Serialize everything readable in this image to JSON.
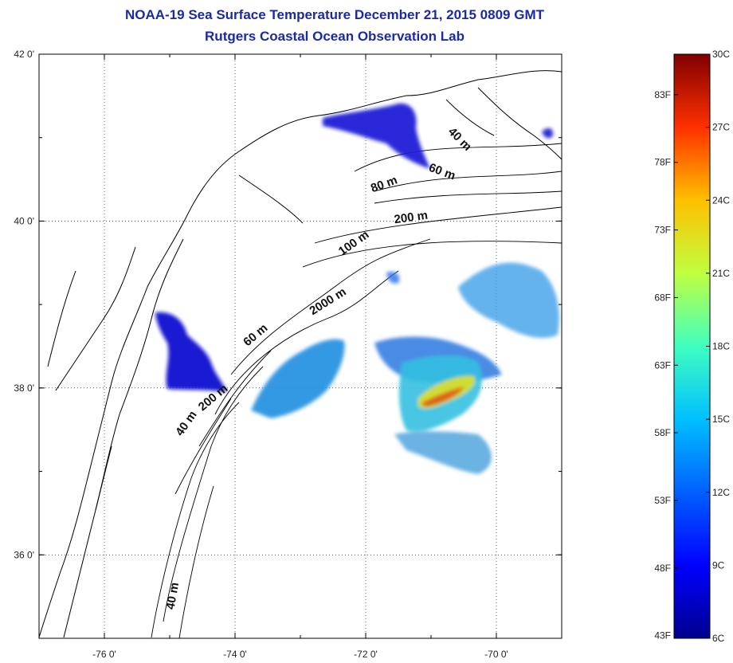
{
  "title": {
    "line1": "NOAA-19 Sea Surface Temperature December 21, 2015 0809 GMT",
    "line2": "Rutgers Coastal Ocean Observation Lab"
  },
  "map": {
    "lon_range": [
      -77.0,
      -69.0
    ],
    "lat_range": [
      35.0,
      42.0
    ],
    "lon_ticks": [
      {
        "value": -76,
        "label": "-76 0'"
      },
      {
        "value": -74,
        "label": "-74 0'"
      },
      {
        "value": -72,
        "label": "-72 0'"
      },
      {
        "value": -70,
        "label": "-70 0'"
      }
    ],
    "lat_ticks": [
      {
        "value": 42,
        "label": "42 0'"
      },
      {
        "value": 40,
        "label": "40 0'"
      },
      {
        "value": 38,
        "label": "38 0'"
      },
      {
        "value": 36,
        "label": "36 0'"
      }
    ],
    "grid": "dotted",
    "isobath_labels": [
      {
        "text": "40 m",
        "lon": -70.6,
        "lat": 40.95,
        "angle": 45
      },
      {
        "text": "60 m",
        "lon": -70.85,
        "lat": 40.55,
        "angle": 20
      },
      {
        "text": "80 m",
        "lon": -71.7,
        "lat": 40.4,
        "angle": -20
      },
      {
        "text": "200 m",
        "lon": -71.3,
        "lat": 40.0,
        "angle": -8
      },
      {
        "text": "100 m",
        "lon": -72.15,
        "lat": 39.7,
        "angle": -35
      },
      {
        "text": "2000 m",
        "lon": -72.55,
        "lat": 39.0,
        "angle": -32
      },
      {
        "text": "60 m",
        "lon": -73.65,
        "lat": 38.6,
        "angle": -40
      },
      {
        "text": "200 m",
        "lon": -74.3,
        "lat": 37.85,
        "angle": -40
      },
      {
        "text": "40 m",
        "lon": -74.7,
        "lat": 37.55,
        "angle": -55
      },
      {
        "text": "40 m",
        "lon": -74.9,
        "lat": 35.5,
        "angle": -80
      }
    ]
  },
  "colorbar": {
    "temp_min_c": 6,
    "temp_max_c": 30,
    "celsius_labels": [
      "30C",
      "27C",
      "24C",
      "21C",
      "18C",
      "15C",
      "12C",
      "9C",
      "6C"
    ],
    "fahrenheit_labels": [
      "83F",
      "78F",
      "73F",
      "68F",
      "63F",
      "58F",
      "53F",
      "48F",
      "43F"
    ],
    "colors": [
      "#00008f",
      "#0000ff",
      "#0080ff",
      "#00ffff",
      "#80ff80",
      "#ffff00",
      "#ff8000",
      "#ff0000",
      "#800000"
    ]
  }
}
